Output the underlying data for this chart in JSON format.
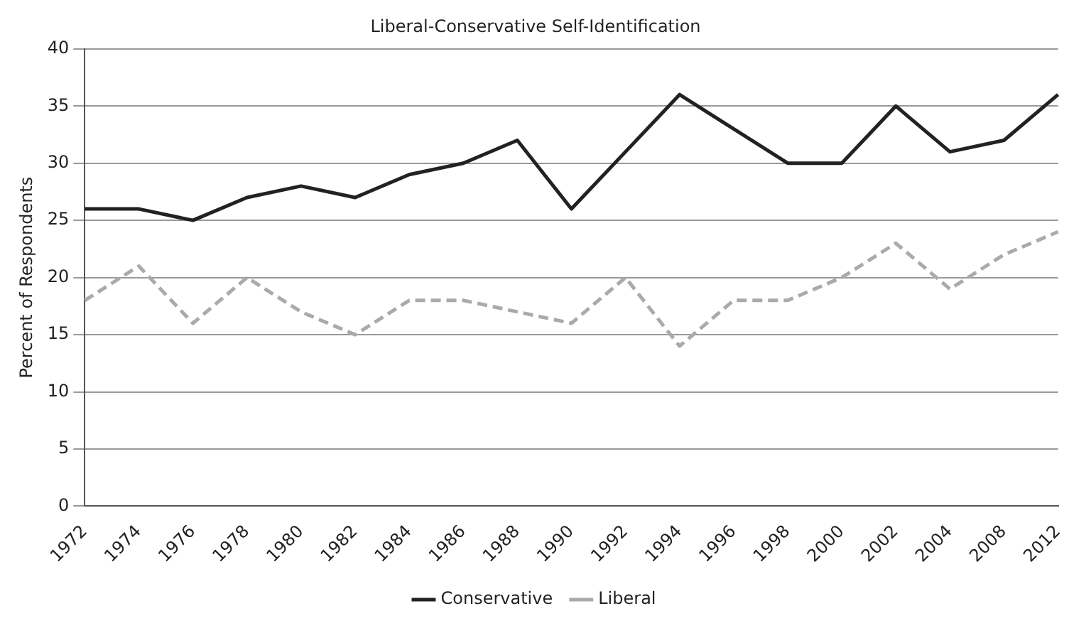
{
  "chart_data": {
    "type": "line",
    "title": "Liberal-Conservative Self-Identification",
    "ylabel": "Percent of Respondents",
    "categories": [
      "1972",
      "1974",
      "1976",
      "1978",
      "1980",
      "1982",
      "1984",
      "1986",
      "1988",
      "1990",
      "1992",
      "1994",
      "1996",
      "1998",
      "2000",
      "2002",
      "2004",
      "2008",
      "2012"
    ],
    "series": [
      {
        "name": "Conservative",
        "color": "#222222",
        "line_style": "solid",
        "values": [
          26,
          26,
          25,
          27,
          28,
          27,
          29,
          30,
          32,
          26,
          31,
          36,
          33,
          30,
          30,
          35,
          31,
          32,
          36
        ]
      },
      {
        "name": "Liberal",
        "color": "#aaaaaa",
        "line_style": "dashed",
        "values": [
          18,
          21,
          16,
          20,
          17,
          15,
          18,
          18,
          17,
          16,
          20,
          14,
          18,
          18,
          20,
          23,
          19,
          22,
          24
        ]
      }
    ],
    "ylim": [
      0,
      40
    ],
    "yticks": [
      0,
      5,
      10,
      15,
      20,
      25,
      30,
      35,
      40
    ],
    "grid": "y",
    "legend": "bottom",
    "marker": "none"
  }
}
